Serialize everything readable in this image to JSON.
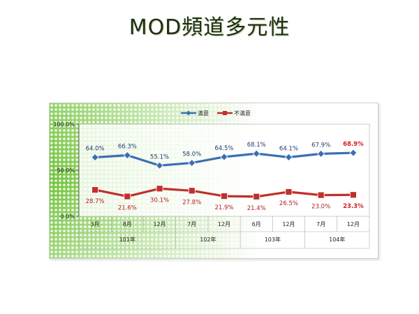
{
  "title": "MOD頻道多元性",
  "chart_data": {
    "type": "line",
    "title": "",
    "xlabel": "",
    "ylabel": "",
    "ylim": [
      0,
      100
    ],
    "yticks": [
      "0.0%",
      "50.0%",
      "100.0%"
    ],
    "categories": [
      "3月",
      "8月",
      "12月",
      "7月",
      "12月",
      "6月",
      "12月",
      "7月",
      "12月"
    ],
    "year_groups": [
      {
        "label": "101年",
        "span": 3
      },
      {
        "label": "102年",
        "span": 2
      },
      {
        "label": "103年",
        "span": 2
      },
      {
        "label": "104年",
        "span": 2
      }
    ],
    "legend_position": "top",
    "grid": false,
    "series": [
      {
        "name": "滿意",
        "color": "#3a6fb5",
        "values": [
          64.0,
          66.3,
          55.1,
          58.0,
          64.5,
          68.1,
          64.1,
          67.9,
          68.9
        ],
        "labels": [
          "64.0%",
          "66.3%",
          "55.1%",
          "58.0%",
          "64.5%",
          "68.1%",
          "64.1%",
          "67.9%",
          "68.9%"
        ],
        "label_color": "#1f3b6e",
        "highlight_color": "#d02020"
      },
      {
        "name": "不滿意",
        "color": "#c0302b",
        "values": [
          28.7,
          21.6,
          30.1,
          27.8,
          21.9,
          21.4,
          26.5,
          23.0,
          23.3
        ],
        "labels": [
          "28.7%",
          "21.6%",
          "30.1%",
          "27.8%",
          "21.9%",
          "21.4%",
          "26.5%",
          "23.0%",
          "23.3%"
        ],
        "label_color": "#b02020",
        "highlight_color": "#d02020"
      }
    ]
  }
}
